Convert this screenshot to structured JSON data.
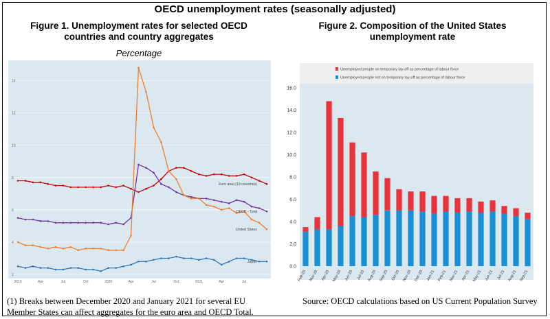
{
  "main_title": "OECD unemployment rates (seasonally adjusted)",
  "fig1": {
    "title_line1": "Figure 1. Unemployment rates for selected OECD",
    "title_line2": "countries and country aggregates",
    "subtitle": "Percentage",
    "note_line1": "(1) Breaks between December 2020 and January 2021 for several EU",
    "note_line2": "Member States can affect aggregates for the euro area and OECD Total."
  },
  "fig2": {
    "title_line1": "Figure 2. Composition of the United States",
    "title_line2": "unemployment rate",
    "source": "Source: OECD calculations based on US Current Population Survey"
  },
  "colors": {
    "plot_bg": "#dce8f0",
    "euro": "#c00000",
    "oecd": "#7030a0",
    "us": "#ed7d31",
    "japan": "#2e75b6",
    "bar_red": "#e8333c",
    "bar_blue": "#1a8fd6"
  },
  "chart_data": [
    {
      "type": "line",
      "x_labels": [
        "2019",
        "Apr",
        "Jul",
        "Oct",
        "2020",
        "Apr",
        "Jul",
        "Oct",
        "2021",
        "Apr",
        "Jul"
      ],
      "y_ticks": [
        "2",
        "4",
        "6",
        "8",
        "10",
        "12",
        "14"
      ],
      "ylim": [
        2,
        15
      ],
      "series": [
        {
          "name": "Euro area (19 countries)",
          "key": "euro",
          "values": [
            7.8,
            7.8,
            7.7,
            7.7,
            7.6,
            7.5,
            7.5,
            7.4,
            7.4,
            7.4,
            7.4,
            7.4,
            7.5,
            7.4,
            7.5,
            7.3,
            7.1,
            7.3,
            7.5,
            7.9,
            8.4,
            8.6,
            8.6,
            8.4,
            8.2,
            8.1,
            8.2,
            8.2,
            8.1,
            8.1,
            8.2,
            8.0,
            7.8,
            7.6
          ]
        },
        {
          "name": "OECD - Total",
          "key": "oecd",
          "values": [
            5.5,
            5.4,
            5.4,
            5.3,
            5.3,
            5.2,
            5.2,
            5.2,
            5.2,
            5.2,
            5.2,
            5.2,
            5.1,
            5.2,
            5.1,
            5.5,
            8.8,
            8.6,
            8.3,
            7.6,
            7.4,
            7.1,
            6.9,
            6.8,
            6.7,
            6.7,
            6.6,
            6.5,
            6.4,
            6.6,
            6.5,
            6.2,
            6.1,
            5.9
          ]
        },
        {
          "name": "United States",
          "key": "us",
          "values": [
            4.0,
            3.8,
            3.8,
            3.7,
            3.6,
            3.7,
            3.6,
            3.7,
            3.5,
            3.6,
            3.6,
            3.6,
            3.5,
            3.5,
            3.5,
            4.4,
            14.8,
            13.3,
            11.1,
            10.2,
            8.4,
            7.9,
            6.9,
            6.7,
            6.7,
            6.3,
            6.2,
            6.0,
            6.1,
            5.8,
            5.9,
            5.4,
            5.2,
            4.8
          ]
        },
        {
          "name": "Japan",
          "key": "japan",
          "values": [
            2.5,
            2.4,
            2.5,
            2.4,
            2.4,
            2.3,
            2.3,
            2.4,
            2.4,
            2.3,
            2.3,
            2.2,
            2.4,
            2.4,
            2.5,
            2.6,
            2.8,
            2.8,
            2.9,
            3.0,
            3.0,
            3.1,
            3.0,
            3.0,
            2.9,
            3.0,
            2.9,
            2.6,
            2.8,
            3.0,
            3.0,
            2.9,
            2.8,
            2.8
          ]
        }
      ]
    },
    {
      "type": "bar",
      "stacked": true,
      "categories": [
        "Feb-20",
        "Mar-20",
        "Apr-20",
        "May-20",
        "Jun-20",
        "Jul-20",
        "Aug-20",
        "Sep-20",
        "Oct-20",
        "Nov-20",
        "Dec-20",
        "Jan-21",
        "Feb-21",
        "Mar-21",
        "Apr-21",
        "May-21",
        "Jun-21",
        "Jul-21",
        "Aug-21",
        "Sep-21"
      ],
      "ylim": [
        0,
        16
      ],
      "y_ticks": [
        "0.0",
        "2.0",
        "4.0",
        "6.0",
        "8.0",
        "10.0",
        "12.0",
        "14.0",
        "16.0"
      ],
      "legend_position": "top",
      "series": [
        {
          "name": "Unemployed people not on temporary lay-off as percentage of labour force",
          "key": "bar_blue",
          "values": [
            3.1,
            3.3,
            3.3,
            3.6,
            4.5,
            4.4,
            4.6,
            5.0,
            5.0,
            5.0,
            4.9,
            4.7,
            4.9,
            4.8,
            4.9,
            4.8,
            4.9,
            4.7,
            4.5,
            4.2
          ]
        },
        {
          "name": "Unemployed people on temporary lay-off as percentage of labour force",
          "key": "bar_red",
          "values": [
            0.4,
            1.1,
            11.5,
            9.7,
            6.6,
            5.8,
            3.9,
            2.9,
            1.9,
            1.7,
            1.8,
            1.6,
            1.4,
            1.3,
            1.2,
            1.0,
            1.0,
            0.7,
            0.7,
            0.6
          ]
        }
      ]
    }
  ]
}
